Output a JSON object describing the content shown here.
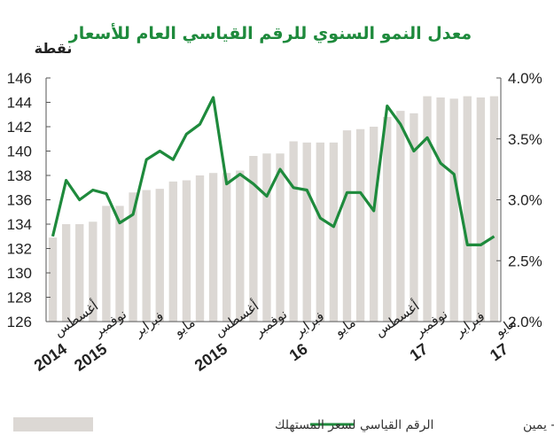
{
  "chart_data": {
    "type": "bar+line",
    "title": "معدل النمو السنوي للرقم القياسي العام  للأسعار",
    "ylabel_left": "نقطة",
    "ylim_left": [
      126,
      146
    ],
    "yticks_left": [
      "126",
      "128",
      "130",
      "132",
      "134",
      "136",
      "138",
      "140",
      "142",
      "144",
      "146"
    ],
    "ylim_right": [
      2.0,
      4.0
    ],
    "yticks_right": [
      "2.0%",
      "2.5%",
      "3.0%",
      "3.5%",
      "4.0%"
    ],
    "grid": false,
    "legend_position": "bottom",
    "x_labels": [
      {
        "line1": "أغسطس",
        "line2": "2014"
      },
      {
        "line1": "نوفمبر",
        "line2": "2015"
      },
      {
        "line1": "فبراير",
        "line2": ""
      },
      {
        "line1": "مايو",
        "line2": ""
      },
      {
        "line1": "أغسطس",
        "line2": "2015"
      },
      {
        "line1": "نوفمبر",
        "line2": ""
      },
      {
        "line1": "فبراير",
        "line2": "16"
      },
      {
        "line1": "مايو",
        "line2": ""
      },
      {
        "line1": "أغسطس",
        "line2": ""
      },
      {
        "line1": "نوفمبر",
        "line2": "17"
      },
      {
        "line1": "فبراير",
        "line2": ""
      },
      {
        "line1": "مايو",
        "line2": "17"
      }
    ],
    "x_label_index": [
      0,
      3,
      6,
      9,
      12,
      15,
      18,
      21,
      24,
      27,
      30,
      33
    ],
    "series": [
      {
        "name": "الرقم القياسي لسعر المستهلك",
        "type": "bar",
        "axis": "left",
        "color": "#dcd8d4",
        "values": [
          132.9,
          134.0,
          134.0,
          134.2,
          135.5,
          135.5,
          136.6,
          136.8,
          136.9,
          137.5,
          137.6,
          138.0,
          138.2,
          138.2,
          138.4,
          139.6,
          139.8,
          139.8,
          140.8,
          140.7,
          140.7,
          140.7,
          141.7,
          141.8,
          142.0,
          142.8,
          143.3,
          143.1,
          144.5,
          144.4,
          144.3,
          144.5,
          144.4,
          144.5
        ]
      },
      {
        "name": "معدل النمو السنوي - يمين",
        "type": "line",
        "axis": "right",
        "color": "#1e8a3c",
        "values": [
          2.7,
          3.16,
          3.0,
          3.08,
          3.05,
          2.81,
          2.88,
          3.33,
          3.4,
          3.33,
          3.54,
          3.62,
          3.84,
          3.13,
          3.21,
          3.13,
          3.03,
          3.25,
          3.1,
          3.08,
          2.85,
          2.78,
          3.06,
          3.06,
          2.91,
          3.77,
          3.62,
          3.4,
          3.51,
          3.3,
          3.21,
          2.63,
          2.63,
          2.7
        ]
      }
    ]
  },
  "colors": {
    "title": "#1e8a3c",
    "bar": "#dcd8d4",
    "line": "#1e8a3c",
    "axis": "#555555"
  }
}
